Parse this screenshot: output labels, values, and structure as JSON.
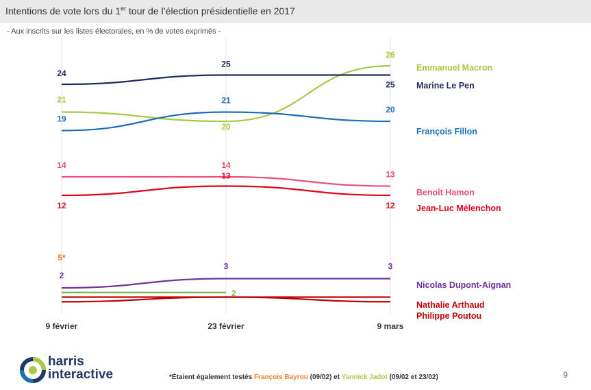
{
  "title": {
    "prefix": "Intentions de vote lors du 1",
    "sup": "er",
    "suffix": " tour de l’élection présidentielle en 2017"
  },
  "subtitle": "- Aux inscrits sur les listes électorales, en % de votes exprimés -",
  "chart_data": {
    "type": "line",
    "categories": [
      "9 février",
      "23 février",
      "9 mars"
    ],
    "grid": "vertical",
    "series": [
      {
        "name": "Emmanuel Macron",
        "color": "#a9c843",
        "values": [
          21,
          20,
          26
        ],
        "labels": [
          "21",
          "20",
          "26"
        ]
      },
      {
        "name": "Marine Le Pen",
        "color": "#1f2a5c",
        "values": [
          24,
          25,
          25
        ],
        "labels": [
          "24",
          "25",
          "25"
        ]
      },
      {
        "name": "François Fillon",
        "color": "#1a6fb7",
        "values": [
          19,
          21,
          20
        ],
        "labels": [
          "19",
          "21",
          "20"
        ]
      },
      {
        "name": "Benoît Hamon",
        "color": "#ef4d79",
        "values": [
          14,
          14,
          13
        ],
        "labels": [
          "14",
          "14",
          "13"
        ]
      },
      {
        "name": "Jean-Luc Mélenchon",
        "color": "#e3001b",
        "values": [
          12,
          13,
          12
        ],
        "labels": [
          "12",
          "13",
          "12"
        ]
      },
      {
        "name": "Nicolas Dupont-Aignan",
        "color": "#7030a0",
        "values": [
          2,
          3,
          3
        ],
        "labels": [
          "2",
          "3",
          "3"
        ]
      },
      {
        "name": "Nathalie Arthaud",
        "color": "#c00000",
        "values": [
          1,
          1,
          1
        ],
        "labels": [
          "",
          "",
          ""
        ]
      },
      {
        "name": "Philippe Poutou",
        "color": "#c00000",
        "values": [
          0.5,
          1,
          0.5
        ],
        "labels": [
          "",
          "",
          ""
        ]
      },
      {
        "name": "Yannick Jadot",
        "color": "#7ab648",
        "values": [
          1.5,
          1.5,
          null
        ],
        "labels": [
          "",
          "2",
          ""
        ]
      },
      {
        "name": "François Bayrou",
        "color": "#f07c2d",
        "values": [
          5,
          null,
          null
        ],
        "labels": [
          "5*",
          "",
          ""
        ]
      }
    ]
  },
  "footnote": {
    "lead": "*Étaient également testés ",
    "bayrou": "François Bayrou",
    "bayrou_date": " (09/02) et ",
    "jadot": "Yannick Jadot",
    "jadot_date": " (09/02 et 23/02)"
  },
  "logo": {
    "line1": "harris",
    "line2": "interactive",
    "icon": "harris-logo-icon",
    "colors": [
      "#1f3864",
      "#a9c843",
      "#1a6fb7"
    ]
  },
  "page_number": "9"
}
